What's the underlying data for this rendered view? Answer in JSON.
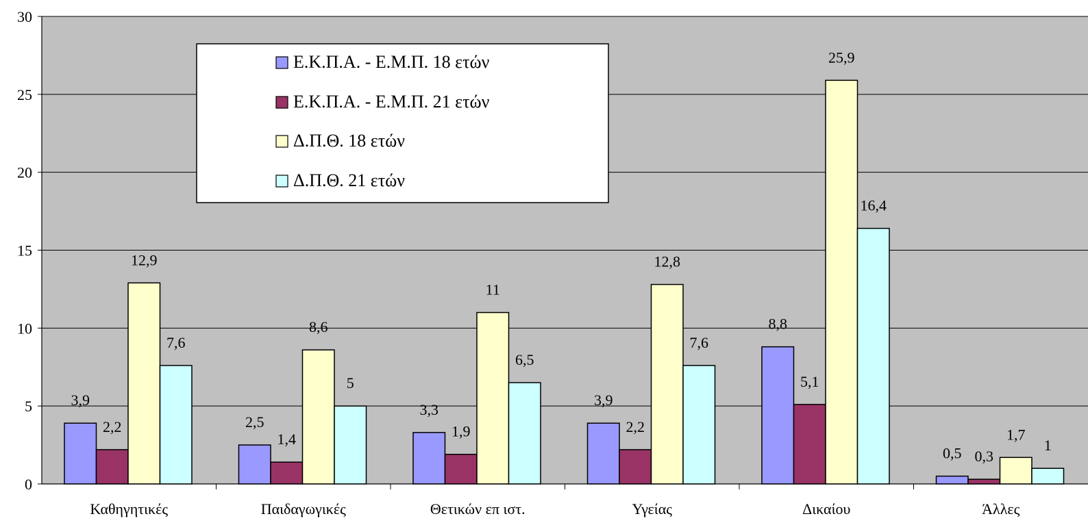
{
  "chart_data": {
    "type": "bar",
    "title": "",
    "xlabel": "",
    "ylabel": "",
    "ylim": [
      0,
      30
    ],
    "yticks": [
      "0",
      "5",
      "10",
      "15",
      "20",
      "25",
      "30"
    ],
    "grid": true,
    "legend_position": "top-left",
    "categories": [
      "Καθηγητικές",
      "Παιδαγωγικές",
      "Θετικών επ ιστ.",
      "Υγείας",
      "Δικαίου",
      "Άλλες"
    ],
    "series": [
      {
        "name": "Ε.Κ.Π.Α. - Ε.Μ.Π. 18 ετών",
        "color": "#9999ff",
        "values": [
          3.9,
          2.5,
          3.3,
          3.9,
          8.8,
          0.5
        ],
        "labels": [
          "3,9",
          "2,5",
          "3,3",
          "3,9",
          "8,8",
          "0,5"
        ]
      },
      {
        "name": "Ε.Κ.Π.Α. - Ε.Μ.Π. 21 ετών",
        "color": "#993366",
        "values": [
          2.2,
          1.4,
          1.9,
          2.2,
          5.1,
          0.3
        ],
        "labels": [
          "2,2",
          "1,4",
          "1,9",
          "2,2",
          "5,1",
          "0,3"
        ]
      },
      {
        "name": "Δ.Π.Θ. 18 ετών",
        "color": "#ffffcc",
        "values": [
          12.9,
          8.6,
          11,
          12.8,
          25.9,
          1.7
        ],
        "labels": [
          "12,9",
          "8,6",
          "11",
          "12,8",
          "25,9",
          "1,7"
        ]
      },
      {
        "name": "Δ.Π.Θ. 21 ετών",
        "color": "#ccffff",
        "values": [
          7.6,
          5,
          6.5,
          7.6,
          16.4,
          1
        ],
        "labels": [
          "7,6",
          "5",
          "6,5",
          "7,6",
          "16,4",
          "1"
        ]
      }
    ]
  },
  "colors": {
    "plot_background": "#c0c0c0",
    "gridline": "#000000",
    "bar_stroke": "#000000"
  }
}
